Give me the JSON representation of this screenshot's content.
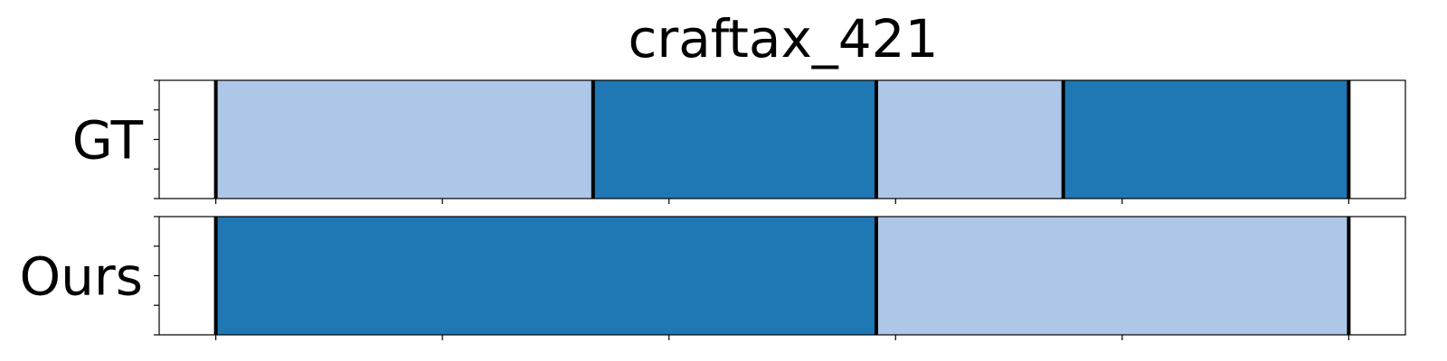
{
  "chart_data": {
    "type": "segmentation-timeline",
    "title": "craftax_421",
    "x_range": [
      0,
      11
    ],
    "x_ticks": [
      0.5,
      2.5,
      4.5,
      6.5,
      8.5,
      10.5
    ],
    "y_ticks_per_row": 5,
    "colors": {
      "light": "#aec7e8",
      "dark": "#1f77b4",
      "boundary": "#000000"
    },
    "rows": [
      {
        "label": "GT",
        "segments": [
          {
            "start": 0.5,
            "end": 3.83,
            "class": "light"
          },
          {
            "start": 3.83,
            "end": 6.33,
            "class": "dark"
          },
          {
            "start": 6.33,
            "end": 7.98,
            "class": "light"
          },
          {
            "start": 7.98,
            "end": 10.5,
            "class": "dark"
          }
        ]
      },
      {
        "label": "Ours",
        "segments": [
          {
            "start": 0.5,
            "end": 6.33,
            "class": "dark"
          },
          {
            "start": 6.33,
            "end": 10.5,
            "class": "light"
          }
        ]
      }
    ]
  }
}
